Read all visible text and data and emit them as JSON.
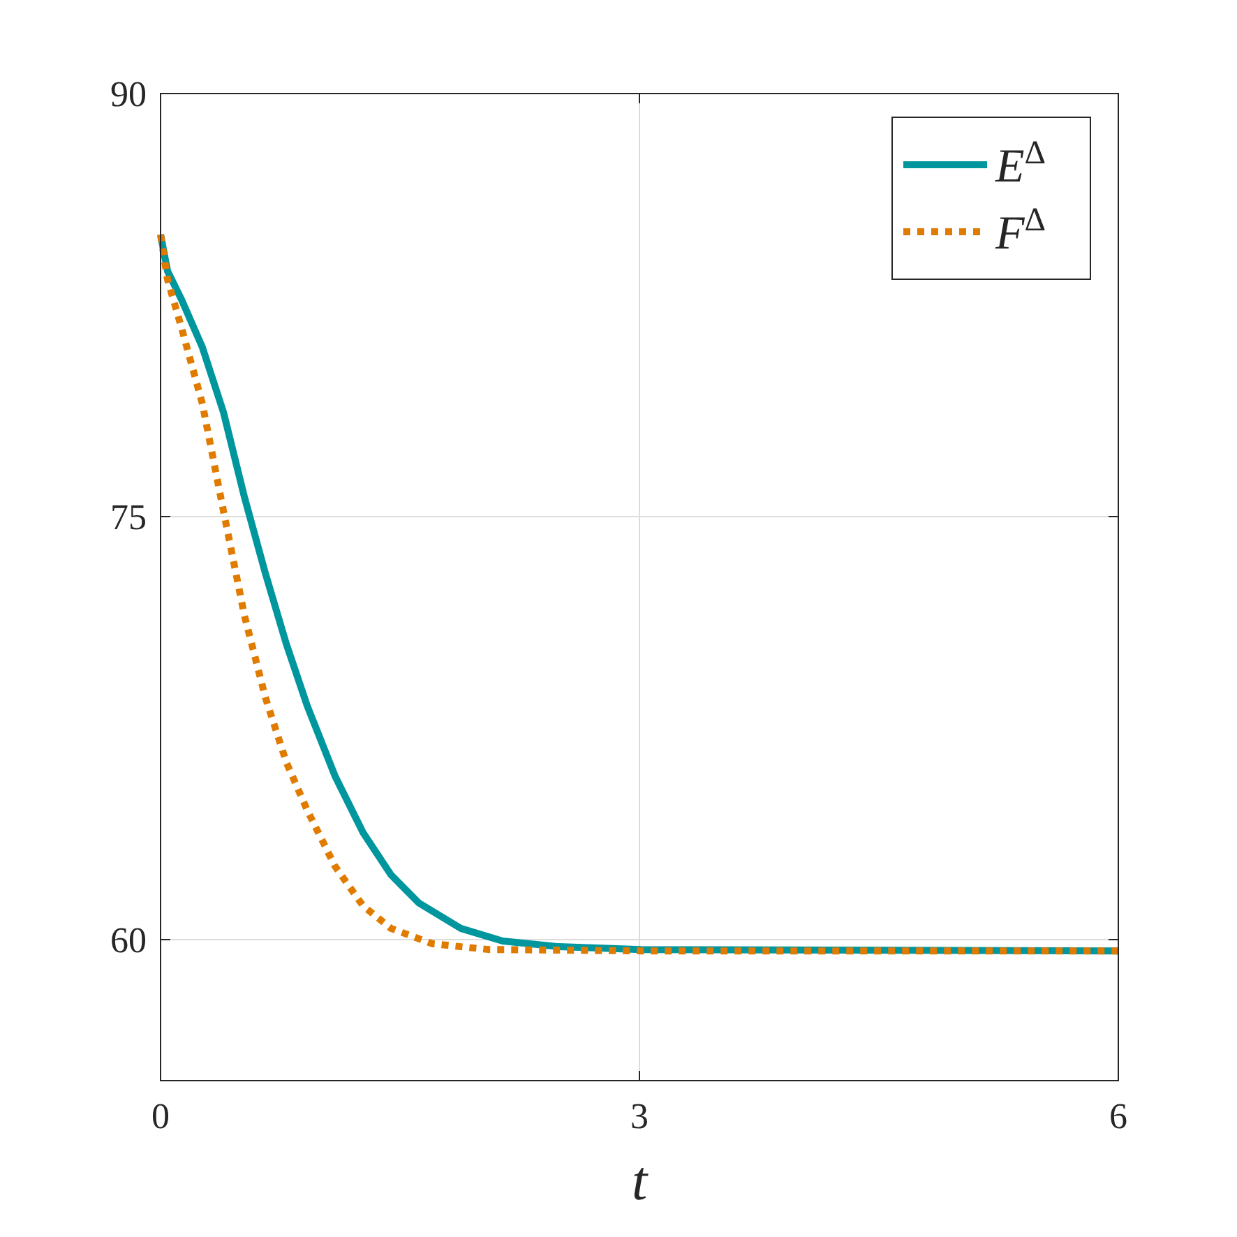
{
  "chart_data": {
    "type": "line",
    "xlabel": "t",
    "xlim": [
      0,
      6
    ],
    "xticks": [
      0,
      3,
      6
    ],
    "ylim": [
      55,
      90
    ],
    "yticks": [
      60,
      75,
      90
    ],
    "grid": true,
    "legend": "top right",
    "series": [
      {
        "name": "E$^{Δ}$",
        "color": "#00969e",
        "line_style": "solid",
        "x": [
          0,
          0.044,
          0.131,
          0.262,
          0.394,
          0.525,
          0.656,
          0.787,
          0.918,
          1.093,
          1.268,
          1.443,
          1.618,
          1.88,
          2.143,
          2.493,
          3.009,
          6
        ],
        "values": [
          85,
          83.7,
          82.7,
          81,
          78.7,
          75.7,
          73,
          70.5,
          68.3,
          65.8,
          63.8,
          62.3,
          61.3,
          60.4,
          59.95,
          59.75,
          59.65,
          59.6
        ]
      },
      {
        "name": "F$^{Δ}$",
        "color": "#e07b00",
        "line_style": "dotted",
        "x": [
          0,
          0.044,
          0.131,
          0.262,
          0.394,
          0.525,
          0.656,
          0.787,
          0.918,
          1.093,
          1.268,
          1.443,
          1.705,
          2.055,
          3.009,
          6
        ],
        "values": [
          85,
          83.4,
          81.7,
          79,
          75.2,
          71.5,
          68.6,
          66.3,
          64.6,
          62.6,
          61.2,
          60.4,
          59.85,
          59.65,
          59.6,
          59.6
        ]
      }
    ]
  }
}
